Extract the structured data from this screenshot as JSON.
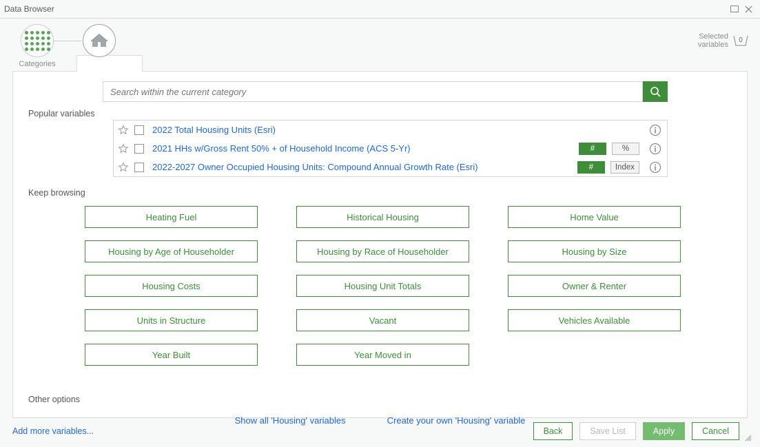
{
  "window": {
    "title": "Data Browser"
  },
  "nav": {
    "categories_label": "Categories",
    "housing_label": "Housing"
  },
  "selected": {
    "label_top": "Selected",
    "label_bottom": "variables",
    "count": "0"
  },
  "search": {
    "placeholder": "Search within the current category"
  },
  "sections": {
    "popular": "Popular variables",
    "keep": "Keep browsing",
    "other": "Other options"
  },
  "popular": [
    {
      "label": "2022 Total Housing Units (Esri)",
      "badges": []
    },
    {
      "label": "2021 HHs w/Gross Rent 50% + of Household Income (ACS 5-Yr)",
      "badges": [
        {
          "text": "#",
          "style": "green"
        },
        {
          "text": "%",
          "style": "light"
        }
      ]
    },
    {
      "label": "2022-2027 Owner Occupied Housing Units: Compound Annual Growth Rate (Esri)",
      "badges": [
        {
          "text": "#",
          "style": "green"
        },
        {
          "text": "Index",
          "style": "light"
        }
      ]
    }
  ],
  "categories": [
    "Heating Fuel",
    "Historical Housing",
    "Home Value",
    "Housing by Age of Householder",
    "Housing by Race of Householder",
    "Housing by Size",
    "Housing Costs",
    "Housing Unit Totals",
    "Owner & Renter",
    "Units in Structure",
    "Vacant",
    "Vehicles Available",
    "Year Built",
    "Year Moved in"
  ],
  "other_links": {
    "show_all": "Show all 'Housing' variables",
    "create": "Create your own 'Housing' variable"
  },
  "footer": {
    "add_more": "Add more variables...",
    "back": "Back",
    "save_list": "Save List",
    "apply": "Apply",
    "cancel": "Cancel"
  },
  "colors": {
    "accent_green": "#3f8d3a",
    "link_blue": "#2268d2",
    "border_gray": "#dcdcdc",
    "muted_text": "#8c8c8c"
  }
}
